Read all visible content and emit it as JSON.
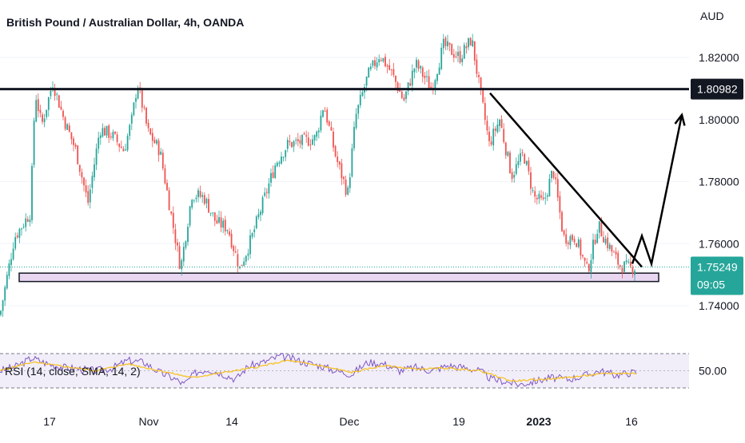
{
  "title": "British Pound / Australian Dollar, 4h, OANDA",
  "currency": "AUD",
  "chart_data": {
    "type": "candlestick",
    "price_axis": {
      "ticks": [
        "1.82000",
        "1.80000",
        "1.78000",
        "1.76000",
        "1.74000"
      ],
      "tick_values": [
        1.82,
        1.8,
        1.78,
        1.76,
        1.74
      ],
      "range": [
        1.7335,
        1.8405
      ]
    },
    "time_axis": {
      "labels": [
        "17",
        "Nov",
        "14",
        "Dec",
        "19",
        "2023",
        "16"
      ],
      "bold_labels": [
        "2023"
      ]
    },
    "resistance_level": {
      "value": 1.80982,
      "label": "1.80982"
    },
    "current_price": {
      "value": 1.75249,
      "label": "1.75249",
      "countdown": "09:05"
    },
    "support_zone": {
      "from": 1.7478,
      "to": 1.7505
    },
    "candle_path": [
      [
        0,
        1.737
      ],
      [
        18,
        1.762
      ],
      [
        38,
        1.77
      ],
      [
        44,
        1.809
      ],
      [
        52,
        1.798
      ],
      [
        66,
        1.812
      ],
      [
        80,
        1.8
      ],
      [
        95,
        1.79
      ],
      [
        110,
        1.773
      ],
      [
        125,
        1.797
      ],
      [
        140,
        1.795
      ],
      [
        155,
        1.79
      ],
      [
        165,
        1.8
      ],
      [
        172,
        1.812
      ],
      [
        185,
        1.796
      ],
      [
        200,
        1.79
      ],
      [
        215,
        1.768
      ],
      [
        226,
        1.752
      ],
      [
        240,
        1.776
      ],
      [
        255,
        1.775
      ],
      [
        270,
        1.767
      ],
      [
        285,
        1.765
      ],
      [
        300,
        1.752
      ],
      [
        315,
        1.762
      ],
      [
        330,
        1.774
      ],
      [
        345,
        1.786
      ],
      [
        360,
        1.792
      ],
      [
        380,
        1.793
      ],
      [
        395,
        1.794
      ],
      [
        405,
        1.805
      ],
      [
        420,
        1.788
      ],
      [
        435,
        1.776
      ],
      [
        445,
        1.801
      ],
      [
        460,
        1.814
      ],
      [
        475,
        1.821
      ],
      [
        490,
        1.815
      ],
      [
        505,
        1.806
      ],
      [
        520,
        1.818
      ],
      [
        540,
        1.81
      ],
      [
        555,
        1.824
      ],
      [
        575,
        1.82
      ],
      [
        590,
        1.826
      ],
      [
        600,
        1.81
      ],
      [
        612,
        1.792
      ],
      [
        625,
        1.8
      ],
      [
        640,
        1.782
      ],
      [
        655,
        1.789
      ],
      [
        668,
        1.775
      ],
      [
        680,
        1.773
      ],
      [
        692,
        1.784
      ],
      [
        705,
        1.762
      ],
      [
        720,
        1.762
      ],
      [
        735,
        1.751
      ],
      [
        748,
        1.766
      ],
      [
        760,
        1.76
      ],
      [
        775,
        1.753
      ],
      [
        790,
        1.752
      ],
      [
        796,
        1.7525
      ]
    ],
    "rsi": {
      "label": "RSI (14, close, SMA, 14, 2)",
      "value_label": "50.00",
      "bands": [
        70,
        50,
        30
      ],
      "path": [
        [
          0,
          50
        ],
        [
          20,
          55
        ],
        [
          40,
          65
        ],
        [
          60,
          58
        ],
        [
          80,
          54
        ],
        [
          100,
          52
        ],
        [
          120,
          50
        ],
        [
          140,
          53
        ],
        [
          160,
          62
        ],
        [
          180,
          60
        ],
        [
          200,
          48
        ],
        [
          220,
          40
        ],
        [
          230,
          34
        ],
        [
          245,
          48
        ],
        [
          260,
          52
        ],
        [
          280,
          46
        ],
        [
          295,
          40
        ],
        [
          310,
          55
        ],
        [
          330,
          60
        ],
        [
          350,
          67
        ],
        [
          365,
          64
        ],
        [
          380,
          60
        ],
        [
          400,
          56
        ],
        [
          420,
          50
        ],
        [
          440,
          46
        ],
        [
          460,
          60
        ],
        [
          480,
          58
        ],
        [
          500,
          50
        ],
        [
          520,
          54
        ],
        [
          540,
          50
        ],
        [
          560,
          56
        ],
        [
          580,
          54
        ],
        [
          600,
          50
        ],
        [
          615,
          40
        ],
        [
          630,
          38
        ],
        [
          650,
          34
        ],
        [
          670,
          38
        ],
        [
          690,
          42
        ],
        [
          710,
          40
        ],
        [
          730,
          44
        ],
        [
          750,
          50
        ],
        [
          770,
          45
        ],
        [
          790,
          48
        ],
        [
          796,
          48
        ]
      ],
      "sma_path": [
        [
          0,
          50
        ],
        [
          40,
          60
        ],
        [
          80,
          55
        ],
        [
          120,
          50
        ],
        [
          160,
          58
        ],
        [
          200,
          50
        ],
        [
          240,
          42
        ],
        [
          280,
          48
        ],
        [
          320,
          54
        ],
        [
          360,
          62
        ],
        [
          400,
          56
        ],
        [
          440,
          48
        ],
        [
          480,
          56
        ],
        [
          520,
          52
        ],
        [
          560,
          53
        ],
        [
          600,
          50
        ],
        [
          640,
          38
        ],
        [
          680,
          40
        ],
        [
          720,
          43
        ],
        [
          760,
          47
        ],
        [
          796,
          47
        ]
      ]
    },
    "annotations": {
      "downtrend_line": [
        [
          613,
          1.8085
        ],
        [
          803,
          1.7525
        ]
      ],
      "projection": [
        [
          791,
          1.7535
        ],
        [
          803,
          1.7625
        ],
        [
          815,
          1.7535
        ],
        [
          853,
          1.8015
        ]
      ]
    },
    "colors": {
      "up": "#26a69a",
      "down": "#ef5350",
      "rsi_line": "#7e57c2",
      "rsi_sma": "#f7c325",
      "rsi_band_fill": "#ede7f6",
      "support_fill": "#e9d7f2",
      "current_price_bg": "#26a69a",
      "resistance_bg": "#131722"
    }
  }
}
